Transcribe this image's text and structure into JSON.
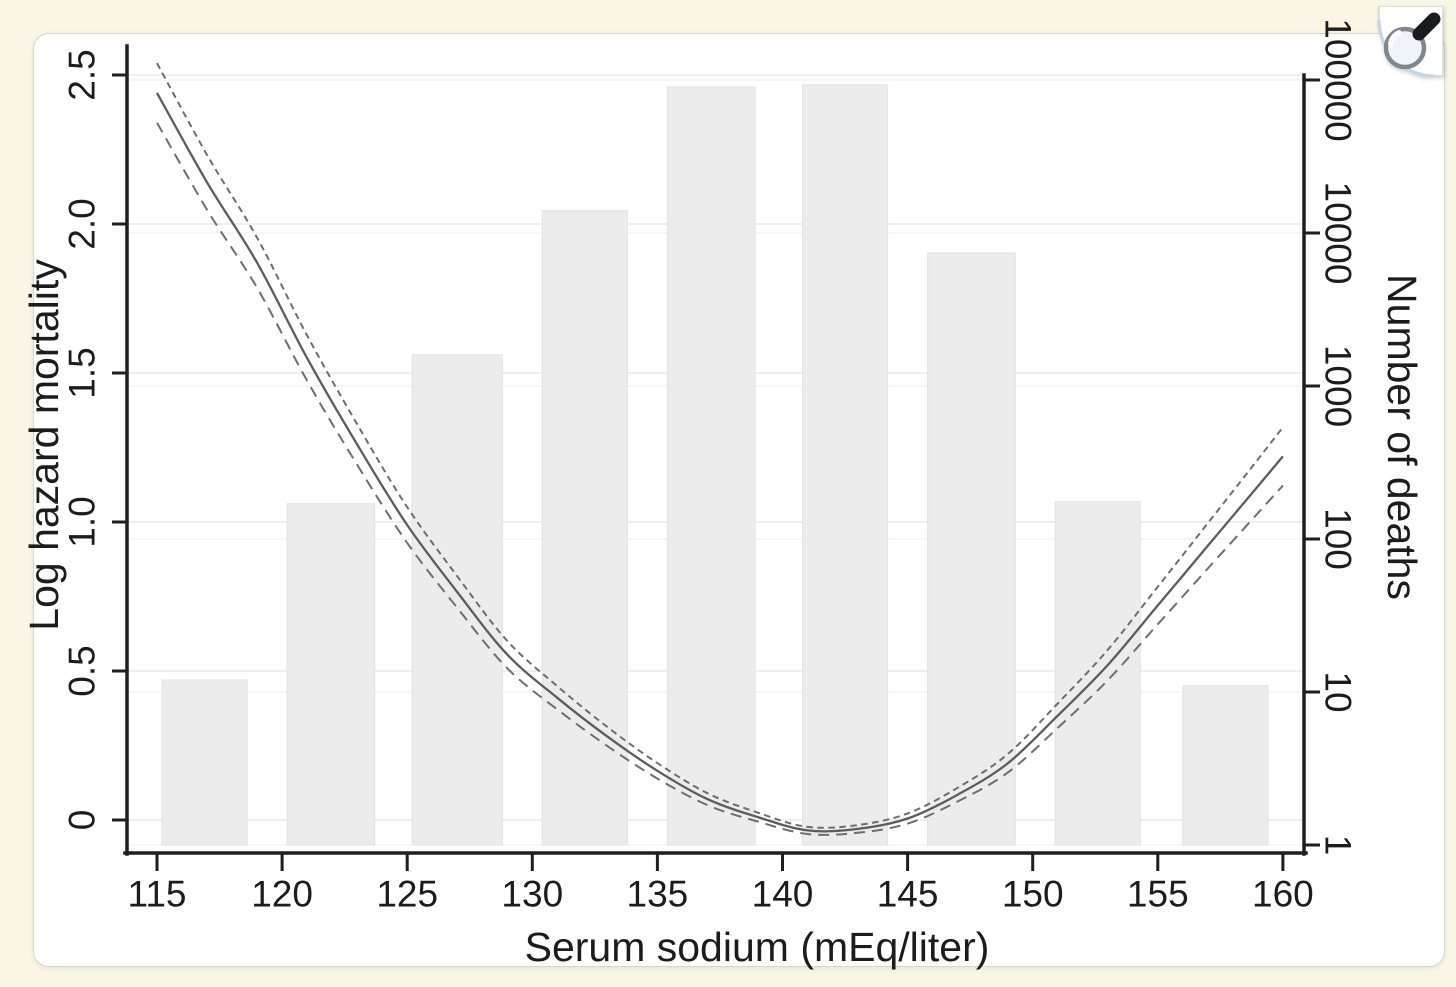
{
  "figure": {
    "background_color": "#faf6e6",
    "card_color": "#ffffff"
  },
  "zoom_button": {
    "icon": "magnifier-icon"
  },
  "chart_data": {
    "type": "line+bar",
    "title": "",
    "x_axis": {
      "title": "Serum sodium (mEq/liter)",
      "range": [
        113.8,
        160.9
      ],
      "ticks": [
        {
          "value": 115,
          "label": "115"
        },
        {
          "value": 120,
          "label": "120"
        },
        {
          "value": 125,
          "label": "125"
        },
        {
          "value": 130,
          "label": "130"
        },
        {
          "value": 135,
          "label": "135"
        },
        {
          "value": 140,
          "label": "140"
        },
        {
          "value": 145,
          "label": "145"
        },
        {
          "value": 150,
          "label": "150"
        },
        {
          "value": 155,
          "label": "155"
        },
        {
          "value": 160,
          "label": "160"
        }
      ]
    },
    "left_axis": {
      "title": "Log hazard mortality",
      "scale": "linear",
      "range": [
        -0.11,
        2.59
      ],
      "ticks": [
        {
          "value": 0,
          "label": "0"
        },
        {
          "value": 0.5,
          "label": "0.5"
        },
        {
          "value": 1.0,
          "label": "1.0"
        },
        {
          "value": 1.5,
          "label": "1.5"
        },
        {
          "value": 2.0,
          "label": "2.0"
        },
        {
          "value": 2.5,
          "label": "2.5"
        }
      ]
    },
    "right_axis": {
      "title": "Number of deaths",
      "scale": "log",
      "range": [
        1,
        100000
      ],
      "ticks": [
        {
          "value": 1,
          "label": "1"
        },
        {
          "value": 10,
          "label": "10"
        },
        {
          "value": 100,
          "label": "100"
        },
        {
          "value": 1000,
          "label": "1000"
        },
        {
          "value": 10000,
          "label": "10000"
        },
        {
          "value": 100000,
          "label": "100000"
        }
      ]
    },
    "bars": [
      {
        "x_from": 115.2,
        "x_to": 118.6,
        "deaths": 12
      },
      {
        "x_from": 120.2,
        "x_to": 123.7,
        "deaths": 170
      },
      {
        "x_from": 125.2,
        "x_to": 128.8,
        "deaths": 1600
      },
      {
        "x_from": 130.4,
        "x_to": 133.8,
        "deaths": 14000
      },
      {
        "x_from": 135.4,
        "x_to": 138.9,
        "deaths": 90000
      },
      {
        "x_from": 140.8,
        "x_to": 144.2,
        "deaths": 93000
      },
      {
        "x_from": 145.8,
        "x_to": 149.3,
        "deaths": 7400
      },
      {
        "x_from": 150.9,
        "x_to": 154.3,
        "deaths": 175
      },
      {
        "x_from": 156.0,
        "x_to": 159.4,
        "deaths": 11
      }
    ],
    "series": [
      {
        "name": "hazard-curve",
        "style": "solid",
        "x": [
          115,
          117,
          119,
          121,
          123,
          125,
          127,
          129,
          131,
          133,
          135,
          137,
          139,
          141,
          143,
          145,
          147,
          149,
          151,
          153,
          155,
          157,
          159,
          160
        ],
        "y": [
          2.44,
          2.14,
          1.87,
          1.55,
          1.26,
          0.99,
          0.765,
          0.555,
          0.41,
          0.28,
          0.165,
          0.07,
          0.01,
          -0.035,
          -0.03,
          0.005,
          0.085,
          0.19,
          0.35,
          0.52,
          0.72,
          0.92,
          1.12,
          1.22
        ]
      },
      {
        "name": "upper-ci-curve",
        "style": "short-dash",
        "x": [
          115,
          117,
          119,
          121,
          123,
          125,
          127,
          129,
          131,
          133,
          135,
          137,
          139,
          141,
          143,
          145,
          147,
          149,
          151,
          153,
          155,
          157,
          159,
          160
        ],
        "y": [
          2.54,
          2.232,
          1.954,
          1.626,
          1.328,
          1.05,
          0.818,
          0.601,
          0.449,
          0.312,
          0.191,
          0.09,
          0.025,
          -0.023,
          -0.017,
          0.022,
          0.108,
          0.221,
          0.391,
          0.571,
          0.783,
          0.996,
          1.21,
          1.318
        ]
      },
      {
        "name": "lower-ci-curve",
        "style": "long-dash",
        "x": [
          115,
          117,
          119,
          121,
          123,
          125,
          127,
          129,
          131,
          133,
          135,
          137,
          139,
          141,
          143,
          145,
          147,
          149,
          151,
          153,
          155,
          157,
          159,
          160
        ],
        "y": [
          2.34,
          2.048,
          1.786,
          1.474,
          1.192,
          0.93,
          0.712,
          0.509,
          0.371,
          0.248,
          0.139,
          0.05,
          -0.005,
          -0.047,
          -0.043,
          -0.012,
          0.062,
          0.159,
          0.309,
          0.469,
          0.657,
          0.844,
          1.03,
          1.122
        ]
      }
    ],
    "colors": {
      "bar_fill": "#ececec",
      "bar_stroke": "#e2e2e2",
      "gridline": "#e8e8e8",
      "gridline_minor": "#f1f1f1",
      "axis": "#1f1f1f",
      "curve": "#5c5c5c",
      "ci": "#6e6e6e"
    },
    "grid": "on",
    "legend": "none"
  }
}
